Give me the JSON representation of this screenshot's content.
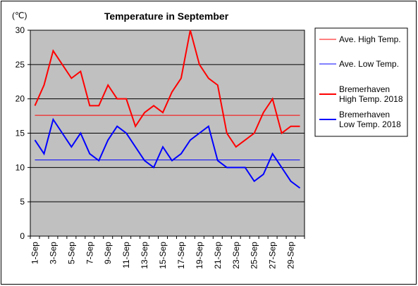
{
  "chart_data": {
    "type": "line",
    "title": "Temperature in September",
    "ylabel": "(℃)",
    "xlabel": "",
    "ylim": [
      0,
      30
    ],
    "yticks": [
      0,
      5,
      10,
      15,
      20,
      25,
      30
    ],
    "grid": "horizontal",
    "legend_position": "right",
    "plot_background": "#c0c0c0",
    "categories": [
      "1-Sep",
      "2-Sep",
      "3-Sep",
      "4-Sep",
      "5-Sep",
      "6-Sep",
      "7-Sep",
      "8-Sep",
      "9-Sep",
      "10-Sep",
      "11-Sep",
      "12-Sep",
      "13-Sep",
      "14-Sep",
      "15-Sep",
      "16-Sep",
      "17-Sep",
      "18-Sep",
      "19-Sep",
      "20-Sep",
      "21-Sep",
      "22-Sep",
      "23-Sep",
      "24-Sep",
      "25-Sep",
      "26-Sep",
      "27-Sep",
      "28-Sep",
      "29-Sep",
      "30-Sep"
    ],
    "tick_labels": [
      "1-Sep",
      "3-Sep",
      "5-Sep",
      "7-Sep",
      "9-Sep",
      "11-Sep",
      "13-Sep",
      "15-Sep",
      "17-Sep",
      "19-Sep",
      "21-Sep",
      "23-Sep",
      "25-Sep",
      "27-Sep",
      "29-Sep"
    ],
    "series": [
      {
        "name": "Ave. High Temp.",
        "color": "#ff0000",
        "style": "thin",
        "values": [
          17.6,
          17.6,
          17.6,
          17.6,
          17.6,
          17.6,
          17.6,
          17.6,
          17.6,
          17.6,
          17.6,
          17.6,
          17.6,
          17.6,
          17.6,
          17.6,
          17.6,
          17.6,
          17.6,
          17.6,
          17.6,
          17.6,
          17.6,
          17.6,
          17.6,
          17.6,
          17.6,
          17.6,
          17.6,
          17.6
        ]
      },
      {
        "name": "Ave. Low Temp.",
        "color": "#0000ff",
        "style": "thin",
        "values": [
          11.1,
          11.1,
          11.1,
          11.1,
          11.1,
          11.1,
          11.1,
          11.1,
          11.1,
          11.1,
          11.1,
          11.1,
          11.1,
          11.1,
          11.1,
          11.1,
          11.1,
          11.1,
          11.1,
          11.1,
          11.1,
          11.1,
          11.1,
          11.1,
          11.1,
          11.1,
          11.1,
          11.1,
          11.1,
          11.1
        ]
      },
      {
        "name": "Bremerhaven High Temp. 2018",
        "legend_lines": [
          "Bremerhaven",
          "High Temp. 2018"
        ],
        "color": "#ff0000",
        "style": "thick",
        "values": [
          19,
          22,
          27,
          25,
          23,
          24,
          19,
          19,
          22,
          20,
          20,
          16,
          18,
          19,
          18,
          21,
          23,
          30,
          25,
          23,
          22,
          15,
          13,
          14,
          15,
          18,
          20,
          15,
          16,
          16
        ]
      },
      {
        "name": "Bremerhaven Low Temp. 2018",
        "legend_lines": [
          "Bremerhaven",
          "Low Temp. 2018"
        ],
        "color": "#0000ff",
        "style": "thick",
        "values": [
          14,
          12,
          17,
          15,
          13,
          15,
          12,
          11,
          14,
          16,
          15,
          13,
          11,
          10,
          13,
          11,
          12,
          14,
          15,
          16,
          11,
          10,
          10,
          10,
          8,
          9,
          12,
          10,
          8,
          7
        ]
      }
    ]
  }
}
